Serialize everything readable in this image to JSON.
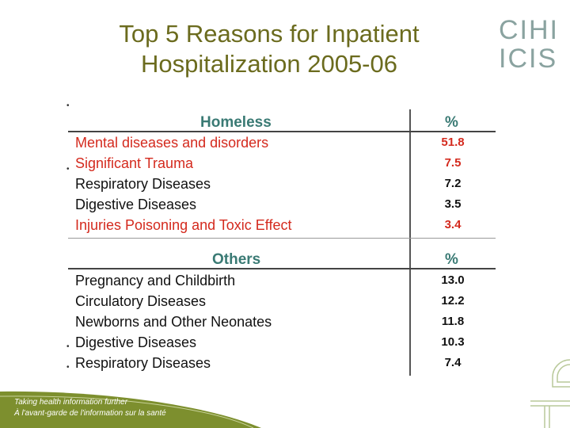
{
  "title": {
    "line1": "Top 5 Reasons for Inpatient",
    "line2": "Hospitalization 2005-06"
  },
  "logo": {
    "top": "CIHI",
    "bottom": "ICIS"
  },
  "homeless": {
    "header": "Homeless",
    "percent_header": "%",
    "rows": [
      {
        "label": "Mental diseases and disorders",
        "value": "51.8",
        "highlight": true
      },
      {
        "label": "Significant Trauma",
        "value": "7.5",
        "highlight": true
      },
      {
        "label": "Respiratory Diseases",
        "value": "7.2",
        "highlight": false
      },
      {
        "label": "Digestive Diseases",
        "value": "3.5",
        "highlight": false
      },
      {
        "label": "Injuries  Poisoning and Toxic Effect",
        "value": "3.4",
        "highlight": true
      }
    ]
  },
  "others": {
    "header": "Others",
    "percent_header": "%",
    "rows": [
      {
        "label": "Pregnancy and Childbirth",
        "value": "13.0"
      },
      {
        "label": "Circulatory Diseases",
        "value": "12.2"
      },
      {
        "label": "Newborns and Other Neonates",
        "value": "11.8"
      },
      {
        "label": "Digestive Diseases",
        "value": "10.3"
      },
      {
        "label": "Respiratory Diseases",
        "value": "7.4"
      }
    ]
  },
  "footer": {
    "tagline_en": "Taking health information further",
    "tagline_fr": "À l'avant-garde de l'information sur la santé"
  },
  "colors": {
    "title": "#6b6b1e",
    "header": "#3a7a74",
    "highlight": "#d42a1e",
    "footer_band": "#7d8f2e"
  }
}
